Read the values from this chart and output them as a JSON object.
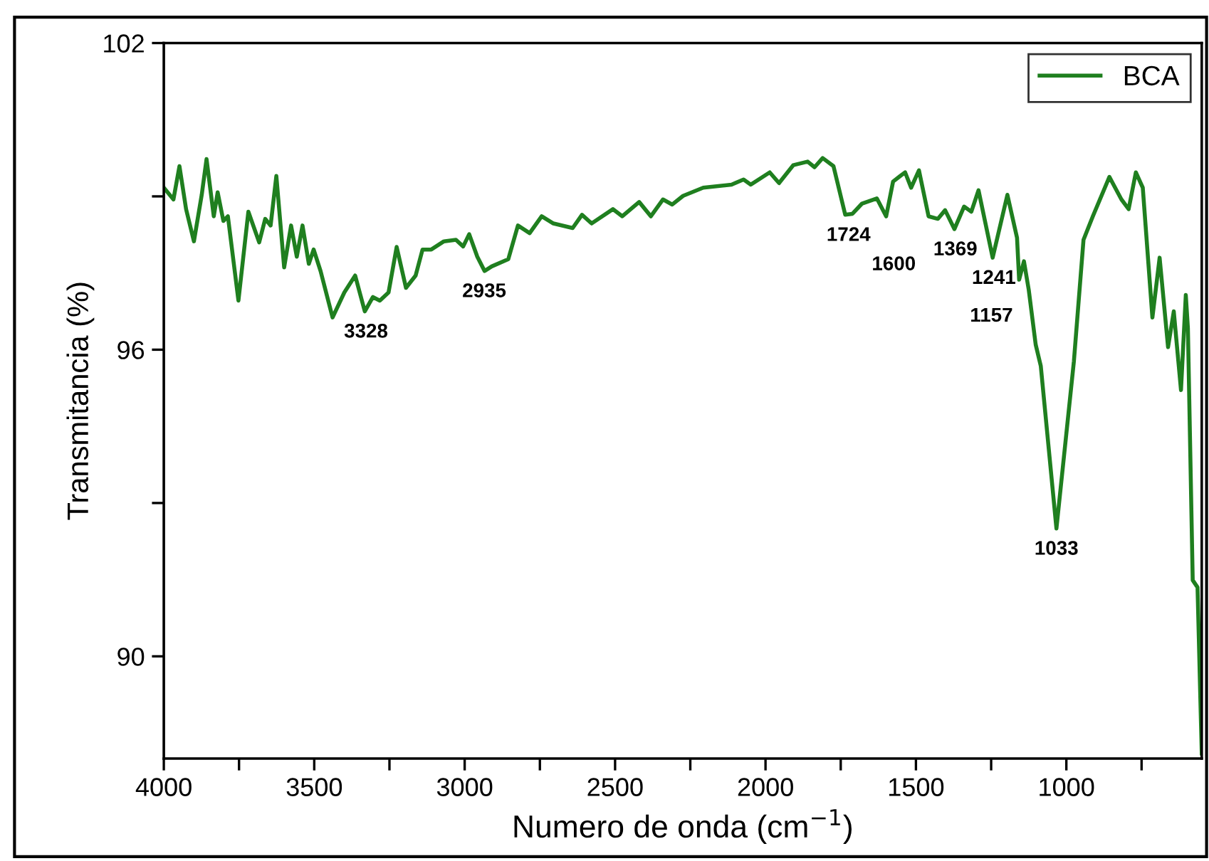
{
  "chart_data": {
    "type": "line",
    "xlabel": "Numero de onda (cm$^{−1}$)",
    "ylabel": "Transmitancia (%)",
    "xlim": [
      4000,
      550
    ],
    "ylim": [
      88,
      102
    ],
    "xticks": [
      4000,
      {
        "value": 3750,
        "label": null
      },
      3500,
      {
        "value": 3250,
        "label": null
      },
      3000,
      {
        "value": 2750,
        "label": null
      },
      2500,
      {
        "value": 2250,
        "label": null
      },
      2000,
      {
        "value": 1750,
        "label": null
      },
      1500,
      {
        "value": 1250,
        "label": null
      },
      1000,
      {
        "value": 750,
        "label": null
      }
    ],
    "yticks": [
      90,
      {
        "value": 93,
        "label": null
      },
      96,
      {
        "value": 99,
        "label": null
      },
      102
    ],
    "grid": false,
    "legend": "top right",
    "marker": "none",
    "line_style": "solid",
    "series": [
      {
        "name": "BCA",
        "color": "#1f7f1f",
        "x": [
          4000,
          3968,
          3948,
          3926,
          3900,
          3874,
          3858,
          3834,
          3821,
          3802,
          3787,
          3752,
          3719,
          3683,
          3663,
          3645,
          3626,
          3600,
          3577,
          3558,
          3539,
          3518,
          3502,
          3479,
          3439,
          3400,
          3364,
          3332,
          3305,
          3282,
          3253,
          3226,
          3195,
          3163,
          3140,
          3111,
          3069,
          3029,
          3005,
          2985,
          2958,
          2934,
          2910,
          2855,
          2823,
          2784,
          2744,
          2705,
          2641,
          2610,
          2578,
          2507,
          2476,
          2420,
          2381,
          2341,
          2310,
          2274,
          2207,
          2113,
          2073,
          2049,
          1986,
          1955,
          1908,
          1860,
          1837,
          1810,
          1774,
          1735,
          1711,
          1679,
          1630,
          1599,
          1576,
          1552,
          1536,
          1516,
          1490,
          1458,
          1427,
          1403,
          1372,
          1340,
          1316,
          1292,
          1245,
          1196,
          1164,
          1157,
          1141,
          1125,
          1102,
          1085,
          1033,
          975,
          943,
          912,
          857,
          817,
          793,
          769,
          746,
          714,
          690,
          662,
          643,
          619,
          603,
          596,
          580,
          564,
          550
        ],
        "values": [
          99.17,
          98.94,
          99.59,
          98.75,
          98.12,
          99.03,
          99.73,
          98.61,
          99.08,
          98.52,
          98.61,
          96.96,
          98.7,
          98.1,
          98.56,
          98.43,
          99.4,
          97.61,
          98.43,
          97.82,
          98.43,
          97.68,
          97.96,
          97.54,
          96.63,
          97.12,
          97.45,
          96.75,
          97.03,
          96.96,
          97.12,
          98.01,
          97.21,
          97.45,
          97.96,
          97.96,
          98.12,
          98.15,
          98.02,
          98.26,
          97.82,
          97.54,
          97.63,
          97.77,
          98.43,
          98.28,
          98.61,
          98.47,
          98.38,
          98.64,
          98.47,
          98.75,
          98.61,
          98.89,
          98.61,
          98.94,
          98.84,
          99.01,
          99.17,
          99.23,
          99.33,
          99.23,
          99.47,
          99.26,
          99.61,
          99.68,
          99.57,
          99.75,
          99.59,
          98.64,
          98.66,
          98.86,
          98.96,
          98.61,
          99.29,
          99.4,
          99.47,
          99.17,
          99.51,
          98.61,
          98.56,
          98.73,
          98.36,
          98.8,
          98.7,
          99.12,
          97.8,
          99.03,
          98.19,
          97.37,
          97.73,
          97.17,
          96.1,
          95.68,
          92.5,
          95.77,
          98.15,
          98.61,
          99.38,
          98.94,
          98.75,
          99.47,
          99.17,
          96.63,
          97.8,
          96.05,
          96.75,
          95.21,
          97.07,
          96.42,
          91.49,
          91.35,
          88.1
        ]
      }
    ],
    "annotations": [
      {
        "text": "3328",
        "x": 3328,
        "y": 96.75
      },
      {
        "text": "2935",
        "x": 2935,
        "y": 97.54
      },
      {
        "text": "1724",
        "x": 1724,
        "y": 98.64
      },
      {
        "text": "1600",
        "x": 1600,
        "y": 98.61
      },
      {
        "text": "1369",
        "x": 1369,
        "y": 98.36
      },
      {
        "text": "1241",
        "x": 1241,
        "y": 97.8
      },
      {
        "text": "1157",
        "x": 1157,
        "y": 97.37
      },
      {
        "text": "1033",
        "x": 1033,
        "y": 92.5
      }
    ]
  }
}
